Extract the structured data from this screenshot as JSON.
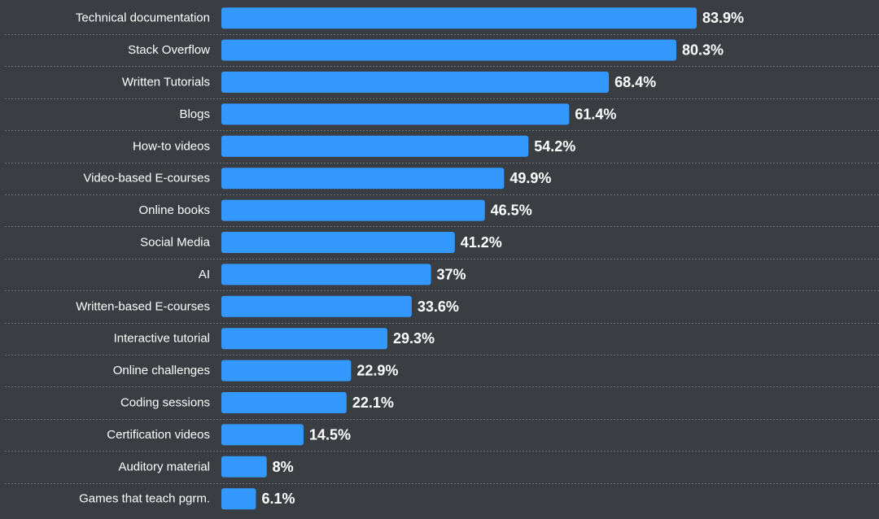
{
  "chart_data": {
    "type": "bar",
    "orientation": "horizontal",
    "title": "",
    "xlabel": "",
    "ylabel": "",
    "xlim": [
      0,
      100
    ],
    "grid": false,
    "categories": [
      "Technical documentation",
      "Stack Overflow",
      "Written Tutorials",
      "Blogs",
      "How-to videos",
      "Video-based E-courses",
      "Online books",
      "Social Media",
      "AI",
      "Written-based E-courses",
      "Interactive tutorial",
      "Online challenges",
      "Coding sessions",
      "Certification videos",
      "Auditory material",
      "Games that teach pgrm."
    ],
    "values": [
      83.9,
      80.3,
      68.4,
      61.4,
      54.2,
      49.9,
      46.5,
      41.2,
      37,
      33.6,
      29.3,
      22.9,
      22.1,
      14.5,
      8,
      6.1
    ],
    "value_labels": [
      "83.9%",
      "80.3%",
      "68.4%",
      "61.4%",
      "54.2%",
      "49.9%",
      "46.5%",
      "41.2%",
      "37%",
      "33.6%",
      "29.3%",
      "22.9%",
      "22.1%",
      "14.5%",
      "8%",
      "6.1%"
    ],
    "colors": {
      "bar": "#3399ff",
      "background": "#3a3d42",
      "text": "#ffffff",
      "separator": "#6a6d72"
    }
  }
}
